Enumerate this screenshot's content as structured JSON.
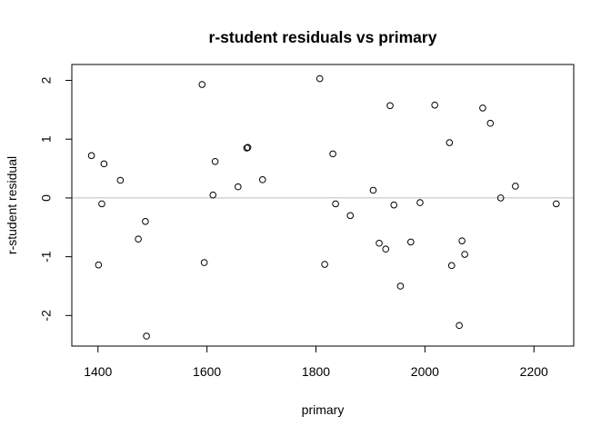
{
  "chart_data": {
    "type": "scatter",
    "title": "r-student residuals vs primary",
    "xlabel": "primary",
    "ylabel": "r-student residual",
    "xlim": [
      1352,
      2273
    ],
    "ylim": [
      -2.52,
      2.27
    ],
    "xticks": [
      1400,
      1600,
      1800,
      2000,
      2200
    ],
    "yticks": [
      -2,
      -1,
      0,
      1,
      2
    ],
    "grid": false,
    "reference_line": {
      "y": 0,
      "color": "#bebebe"
    },
    "point_style": {
      "shape": "open-circle",
      "color": "#000000"
    },
    "points": [
      {
        "x": 1388,
        "y": 0.72
      },
      {
        "x": 1401,
        "y": -1.14
      },
      {
        "x": 1407,
        "y": -0.1
      },
      {
        "x": 1411,
        "y": 0.58
      },
      {
        "x": 1441,
        "y": 0.3
      },
      {
        "x": 1474,
        "y": -0.7
      },
      {
        "x": 1487,
        "y": -0.4
      },
      {
        "x": 1489,
        "y": -2.35
      },
      {
        "x": 1591,
        "y": 1.93
      },
      {
        "x": 1595,
        "y": -1.1
      },
      {
        "x": 1611,
        "y": 0.05
      },
      {
        "x": 1615,
        "y": 0.62
      },
      {
        "x": 1657,
        "y": 0.19
      },
      {
        "x": 1673,
        "y": 0.85
      },
      {
        "x": 1675,
        "y": 0.86
      },
      {
        "x": 1702,
        "y": 0.31
      },
      {
        "x": 1807,
        "y": 2.03
      },
      {
        "x": 1816,
        "y": -1.13
      },
      {
        "x": 1831,
        "y": 0.75
      },
      {
        "x": 1836,
        "y": -0.1
      },
      {
        "x": 1863,
        "y": -0.3
      },
      {
        "x": 1905,
        "y": 0.13
      },
      {
        "x": 1916,
        "y": -0.77
      },
      {
        "x": 1928,
        "y": -0.87
      },
      {
        "x": 1936,
        "y": 1.57
      },
      {
        "x": 1943,
        "y": -0.12
      },
      {
        "x": 1955,
        "y": -1.5
      },
      {
        "x": 1974,
        "y": -0.75
      },
      {
        "x": 1991,
        "y": -0.08
      },
      {
        "x": 2018,
        "y": 1.58
      },
      {
        "x": 2045,
        "y": 0.94
      },
      {
        "x": 2049,
        "y": -1.15
      },
      {
        "x": 2063,
        "y": -2.17
      },
      {
        "x": 2068,
        "y": -0.73
      },
      {
        "x": 2073,
        "y": -0.96
      },
      {
        "x": 2106,
        "y": 1.53
      },
      {
        "x": 2120,
        "y": 1.27
      },
      {
        "x": 2139,
        "y": 0.0
      },
      {
        "x": 2166,
        "y": 0.2
      },
      {
        "x": 2241,
        "y": -0.1
      }
    ]
  }
}
